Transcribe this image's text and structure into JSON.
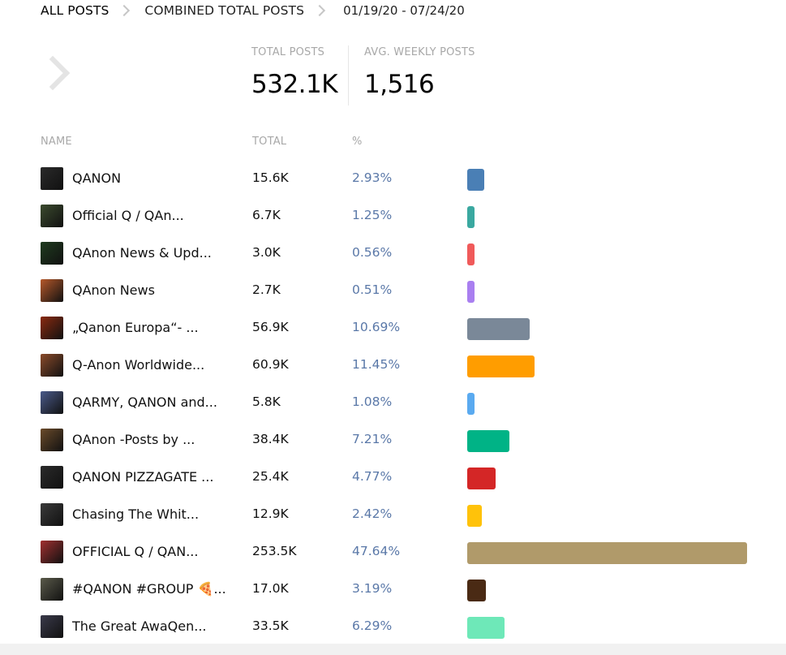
{
  "breadcrumb": {
    "items": [
      "ALL POSTS",
      "COMBINED TOTAL POSTS"
    ],
    "date_range": "01/19/20 - 07/24/20"
  },
  "stats": {
    "total_posts_label": "TOTAL POSTS",
    "total_posts_value": "532.1K",
    "avg_weekly_label": "AVG. WEEKLY POSTS",
    "avg_weekly_value": "1,516"
  },
  "table": {
    "headers": {
      "name": "NAME",
      "total": "TOTAL",
      "pct": "%"
    },
    "rows": [
      {
        "name": "QANON",
        "total": "15.6K",
        "pct": "2.93%",
        "share": 2.93,
        "color": "#4a7fb5",
        "avatar_color": "#2a2a2a"
      },
      {
        "name": "Official Q / QAn...",
        "total": "6.7K",
        "pct": "1.25%",
        "share": 1.25,
        "color": "#3aa8a0",
        "avatar_color": "#3b4a2e"
      },
      {
        "name": "QAnon News & Upd...",
        "total": "3.0K",
        "pct": "0.56%",
        "share": 0.56,
        "color": "#f05a5a",
        "avatar_color": "#1f3b1f"
      },
      {
        "name": "QAnon News",
        "total": "2.7K",
        "pct": "0.51%",
        "share": 0.51,
        "color": "#a97ff0",
        "avatar_color": "#b5582a"
      },
      {
        "name": "„Qanon Europa“- ...",
        "total": "56.9K",
        "pct": "10.69%",
        "share": 10.69,
        "color": "#7a8898",
        "avatar_color": "#8a2a10"
      },
      {
        "name": "Q-Anon Worldwide...",
        "total": "60.9K",
        "pct": "11.45%",
        "share": 11.45,
        "color": "#ff9d00",
        "avatar_color": "#8a4a2a"
      },
      {
        "name": "QARMY, QANON and...",
        "total": "5.8K",
        "pct": "1.08%",
        "share": 1.08,
        "color": "#5aaaf0",
        "avatar_color": "#4a5a8a"
      },
      {
        "name": "QAnon -Posts by ...",
        "total": "38.4K",
        "pct": "7.21%",
        "share": 7.21,
        "color": "#00b386",
        "avatar_color": "#6a4a2a"
      },
      {
        "name": "QANON PIZZAGATE ...",
        "total": "25.4K",
        "pct": "4.77%",
        "share": 4.77,
        "color": "#d42626",
        "avatar_color": "#2a2a2a"
      },
      {
        "name": "Chasing The Whit...",
        "total": "12.9K",
        "pct": "2.42%",
        "share": 2.42,
        "color": "#ffc20a",
        "avatar_color": "#3a3a3a"
      },
      {
        "name": "OFFICIAL Q / QAN...",
        "total": "253.5K",
        "pct": "47.64%",
        "share": 47.64,
        "color": "#b09a6a",
        "avatar_color": "#a03030"
      },
      {
        "name": "#QANON #GROUP 🍕...",
        "total": "17.0K",
        "pct": "3.19%",
        "share": 3.19,
        "color": "#4a2a14",
        "avatar_color": "#5a5a4a"
      },
      {
        "name": "The Great AwaQen...",
        "total": "33.5K",
        "pct": "6.29%",
        "share": 6.29,
        "color": "#6ee8b8",
        "avatar_color": "#3a3a4a"
      }
    ]
  },
  "icons": {
    "breadcrumb_separator": "chevron-right-icon",
    "back": "chevron-right-icon"
  }
}
